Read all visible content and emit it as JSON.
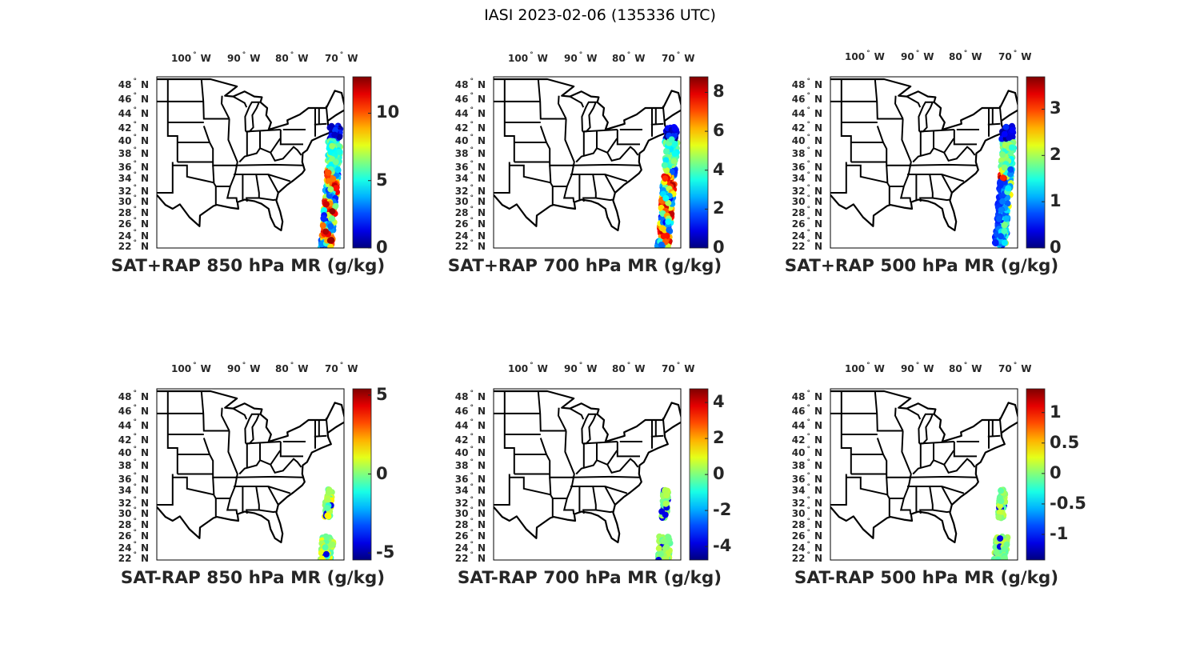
{
  "title": "IASI 2023-02-06 (135336 UTC)",
  "lat_labels": [
    "48",
    "46",
    "44",
    "42",
    "40",
    "38",
    "36",
    "34",
    "32",
    "30",
    "28",
    "26",
    "24",
    "22"
  ],
  "lat_suffix": "N",
  "lon_labels": [
    "100",
    "90",
    "80",
    "70"
  ],
  "lon_suffix": "W",
  "degree_symbol": "°",
  "colormap": "jet",
  "chart_data": [
    {
      "type": "heatmap",
      "title": "SAT+RAP 850 hPa MR (g/kg)",
      "clim": [
        0,
        12.7
      ],
      "cbar_ticks": [
        "0",
        "5",
        "10"
      ],
      "cbar_values": [
        0,
        5,
        10
      ]
    },
    {
      "type": "heatmap",
      "title": "SAT+RAP 700 hPa MR (g/kg)",
      "clim": [
        0,
        8.8
      ],
      "cbar_ticks": [
        "0",
        "2",
        "4",
        "6",
        "8"
      ],
      "cbar_values": [
        0,
        2,
        4,
        6,
        8
      ]
    },
    {
      "type": "heatmap",
      "title": "SAT+RAP 500 hPa MR (g/kg)",
      "clim": [
        0,
        3.7
      ],
      "cbar_ticks": [
        "0",
        "1",
        "2",
        "3"
      ],
      "cbar_values": [
        0,
        1,
        2,
        3
      ]
    },
    {
      "type": "heatmap",
      "title": "SAT-RAP 850 hPa MR (g/kg)",
      "clim": [
        -5.45,
        5.4
      ],
      "cbar_ticks": [
        "-5",
        "0",
        "5"
      ],
      "cbar_values": [
        -5,
        0,
        5
      ]
    },
    {
      "type": "heatmap",
      "title": "SAT-RAP 700 hPa MR (g/kg)",
      "clim": [
        -4.75,
        4.76
      ],
      "cbar_ticks": [
        "-4",
        "-2",
        "0",
        "2",
        "4"
      ],
      "cbar_values": [
        -4,
        -2,
        0,
        2,
        4
      ]
    },
    {
      "type": "heatmap",
      "title": "SAT-RAP 500 hPa MR (g/kg)",
      "clim": [
        -1.42,
        1.39
      ],
      "cbar_ticks": [
        "-1",
        "-0.5",
        "0",
        "0.5",
        "1"
      ],
      "cbar_values": [
        -1,
        -0.5,
        0,
        0.5,
        1
      ]
    }
  ]
}
